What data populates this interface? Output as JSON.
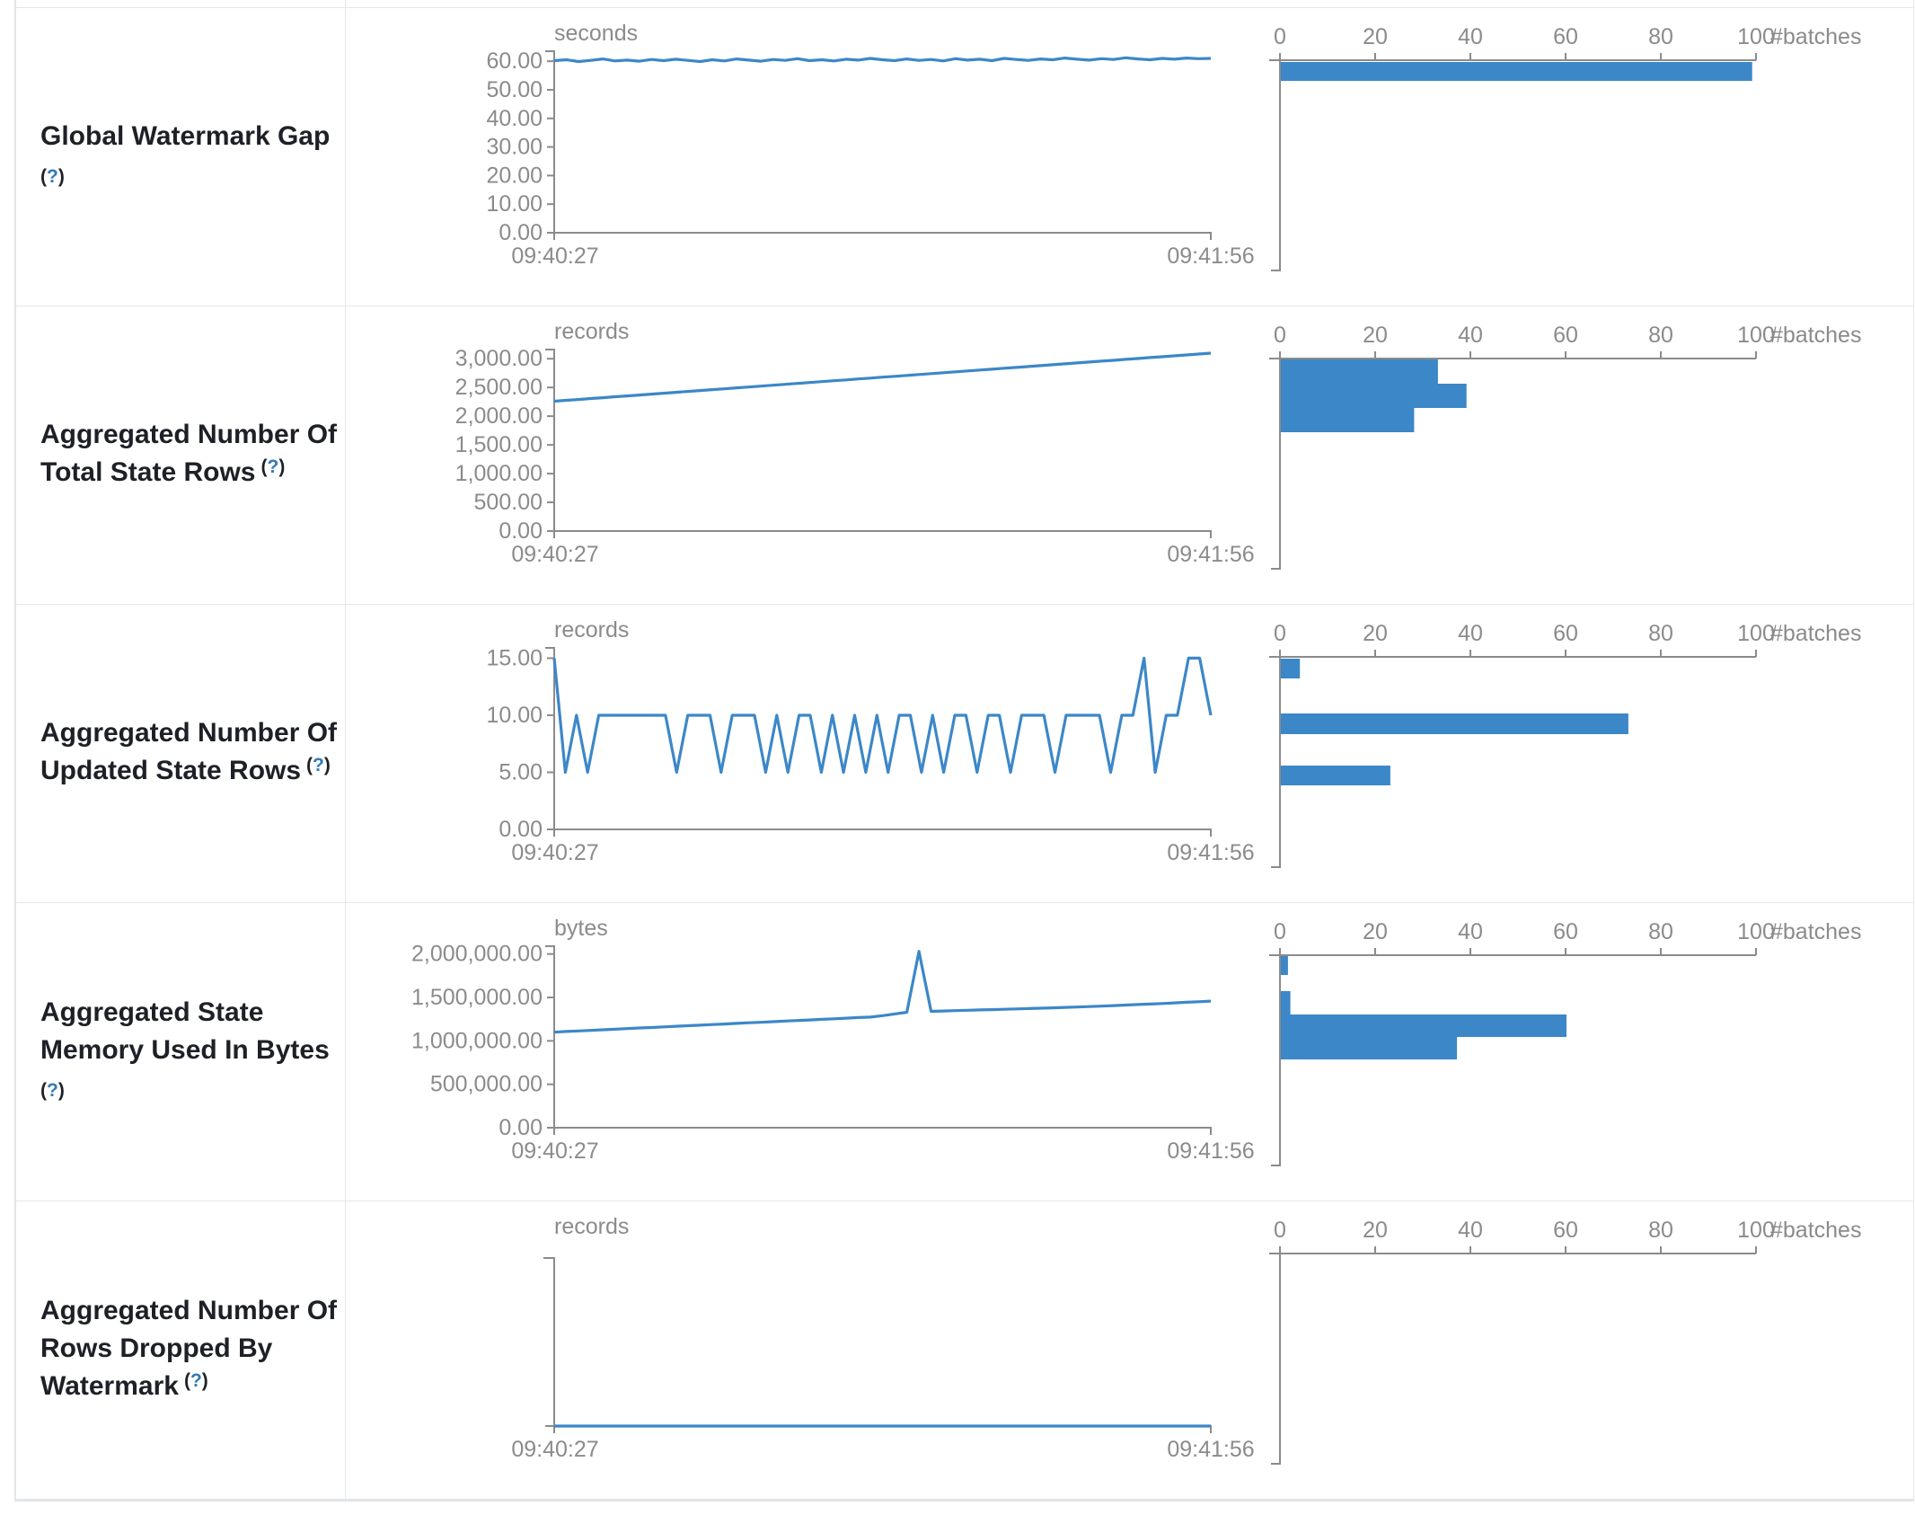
{
  "colors": {
    "accent": "#3c87c8",
    "axis": "#8b8b8b",
    "tick_text": "#8b8b8b",
    "label_text": "#1d2127",
    "help": "#337ab7",
    "border": "#e4e7ea"
  },
  "timeline_axis": {
    "start_label": "09:40:27",
    "end_label": "09:41:56"
  },
  "histogram_axis": {
    "tick_labels": [
      "0",
      "20",
      "40",
      "60",
      "80",
      "100"
    ],
    "tick_values": [
      0,
      20,
      40,
      60,
      80,
      100
    ],
    "unit_label": "#batches",
    "max": 100
  },
  "rows": [
    {
      "label_lines": [
        "Global Watermark Gap"
      ],
      "help": {
        "open": "(",
        "mark": "?",
        "close": ")",
        "inline": false
      },
      "chart_data": {
        "type": "line",
        "title": "Global Watermark Gap",
        "unit": "seconds",
        "xlabel_start": "09:40:27",
        "xlabel_end": "09:41:56",
        "ylim": [
          0,
          63.5
        ],
        "y_ticks": [
          {
            "v": 60,
            "label": "60.00"
          },
          {
            "v": 50,
            "label": "50.00"
          },
          {
            "v": 40,
            "label": "40.00"
          },
          {
            "v": 30,
            "label": "30.00"
          },
          {
            "v": 20,
            "label": "20.00"
          },
          {
            "v": 10,
            "label": "10.00"
          },
          {
            "v": 0,
            "label": "0.00"
          }
        ],
        "values": [
          60.2,
          60.5,
          59.9,
          60.3,
          60.8,
          60.1,
          60.4,
          60.0,
          60.6,
          60.2,
          60.7,
          60.3,
          59.9,
          60.5,
          60.1,
          60.8,
          60.4,
          60.0,
          60.6,
          60.3,
          60.9,
          60.2,
          60.5,
          60.1,
          60.7,
          60.4,
          61.0,
          60.5,
          60.2,
          60.8,
          60.3,
          60.6,
          60.1,
          60.9,
          60.4,
          60.7,
          60.2,
          61.0,
          60.6,
          60.3,
          60.8,
          60.5,
          61.1,
          60.7,
          60.4,
          60.9,
          60.6,
          61.2,
          60.8,
          60.5,
          61.0,
          60.7,
          61.1,
          60.9,
          61.0
        ]
      },
      "histogram": {
        "type": "bar",
        "unit": "#batches",
        "xlim": [
          0,
          100
        ],
        "bars": [
          {
            "batches": 99,
            "y": 60,
            "h": 21
          }
        ]
      }
    },
    {
      "label_lines": [
        "Aggregated Number Of",
        "Total State Rows"
      ],
      "help": {
        "open": "(",
        "mark": "?",
        "close": ")",
        "inline": true
      },
      "chart_data": {
        "type": "line",
        "title": "Aggregated Number Of Total State Rows",
        "unit": "records",
        "xlabel_start": "09:40:27",
        "xlabel_end": "09:41:56",
        "ylim": [
          0,
          3160
        ],
        "y_ticks": [
          {
            "v": 3000,
            "label": "3,000.00"
          },
          {
            "v": 2500,
            "label": "2,500.00"
          },
          {
            "v": 2000,
            "label": "2,000.00"
          },
          {
            "v": 1500,
            "label": "1,500.00"
          },
          {
            "v": 1000,
            "label": "1,000.00"
          },
          {
            "v": 500,
            "label": "500.00"
          },
          {
            "v": 0,
            "label": "0.00"
          }
        ],
        "values": [
          2260,
          2276,
          2291,
          2307,
          2322,
          2338,
          2353,
          2369,
          2384,
          2400,
          2415,
          2431,
          2446,
          2462,
          2477,
          2493,
          2508,
          2524,
          2539,
          2555,
          2570,
          2586,
          2601,
          2617,
          2632,
          2648,
          2663,
          2679,
          2694,
          2710,
          2725,
          2741,
          2756,
          2772,
          2787,
          2803,
          2818,
          2834,
          2849,
          2865,
          2880,
          2896,
          2911,
          2927,
          2942,
          2958,
          2973,
          2989,
          3004,
          3020,
          3035,
          3051,
          3066,
          3082,
          3097
        ]
      },
      "histogram": {
        "type": "bar",
        "unit": "#batches",
        "xlim": [
          0,
          100
        ],
        "bars": [
          {
            "batches": 33,
            "y": 59,
            "h": 27
          },
          {
            "batches": 39,
            "y": 86,
            "h": 27
          },
          {
            "batches": 28,
            "y": 113,
            "h": 27
          }
        ]
      }
    },
    {
      "label_lines": [
        "Aggregated Number Of",
        "Updated State Rows"
      ],
      "help": {
        "open": "(",
        "mark": "?",
        "close": ")",
        "inline": true
      },
      "chart_data": {
        "type": "line",
        "title": "Aggregated Number Of Updated State Rows",
        "unit": "records",
        "xlabel_start": "09:40:27",
        "xlabel_end": "09:41:56",
        "ylim": [
          0,
          15.9
        ],
        "y_ticks": [
          {
            "v": 15,
            "label": "15.00"
          },
          {
            "v": 10,
            "label": "10.00"
          },
          {
            "v": 5,
            "label": "5.00"
          },
          {
            "v": 0,
            "label": "0.00"
          }
        ],
        "values": [
          15,
          5,
          10,
          5,
          10,
          10,
          10,
          10,
          10,
          10,
          10,
          5,
          10,
          10,
          10,
          5,
          10,
          10,
          10,
          5,
          10,
          5,
          10,
          10,
          5,
          10,
          5,
          10,
          5,
          10,
          5,
          10,
          10,
          5,
          10,
          5,
          10,
          10,
          5,
          10,
          10,
          5,
          10,
          10,
          10,
          5,
          10,
          10,
          10,
          10,
          5,
          10,
          10,
          15,
          5,
          10,
          10,
          15,
          15,
          10
        ]
      },
      "histogram": {
        "type": "bar",
        "unit": "#batches",
        "xlim": [
          0,
          100
        ],
        "bars": [
          {
            "batches": 4,
            "y": 60,
            "h": 22
          },
          {
            "batches": 73,
            "y": 121,
            "h": 23
          },
          {
            "batches": 23,
            "y": 179,
            "h": 22
          }
        ]
      }
    },
    {
      "label_lines": [
        "Aggregated State",
        "Memory Used In Bytes"
      ],
      "help": {
        "open": "(",
        "mark": "?",
        "close": ")",
        "inline": false
      },
      "chart_data": {
        "type": "line",
        "title": "Aggregated State Memory Used In Bytes",
        "unit": "bytes",
        "xlabel_start": "09:40:27",
        "xlabel_end": "09:41:56",
        "ylim": [
          0,
          2090000
        ],
        "y_ticks": [
          {
            "v": 2000000,
            "label": "2,000,000.00"
          },
          {
            "v": 1500000,
            "label": "1,500,000.00"
          },
          {
            "v": 1000000,
            "label": "1,000,000.00"
          },
          {
            "v": 500000,
            "label": "500,000.00"
          },
          {
            "v": 0,
            "label": "0.00"
          }
        ],
        "values": [
          1100000,
          1108000,
          1114000,
          1121000,
          1128000,
          1134000,
          1141000,
          1148000,
          1154000,
          1161000,
          1168000,
          1174000,
          1181000,
          1188000,
          1194000,
          1201000,
          1208000,
          1214000,
          1221000,
          1228000,
          1234000,
          1241000,
          1248000,
          1254000,
          1261000,
          1268000,
          1274000,
          1290000,
          1310000,
          1330000,
          2030000,
          1340000,
          1344000,
          1348000,
          1352000,
          1356000,
          1360000,
          1364000,
          1368000,
          1372000,
          1376000,
          1380000,
          1385000,
          1390000,
          1395000,
          1400000,
          1406000,
          1412000,
          1418000,
          1424000,
          1430000,
          1437000,
          1444000,
          1451000,
          1458000
        ]
      },
      "histogram": {
        "type": "bar",
        "unit": "#batches",
        "xlim": [
          0,
          100
        ],
        "bars": [
          {
            "batches": 1.5,
            "y": 59,
            "h": 21
          },
          {
            "batches": 2,
            "y": 98,
            "h": 26
          },
          {
            "batches": 60,
            "y": 124,
            "h": 25
          },
          {
            "batches": 37,
            "y": 149,
            "h": 25
          }
        ]
      }
    },
    {
      "label_lines": [
        "Aggregated Number Of",
        "Rows Dropped By",
        "Watermark"
      ],
      "help": {
        "open": "(",
        "mark": "?",
        "close": ")",
        "inline": true
      },
      "chart_data": {
        "type": "line",
        "title": "Aggregated Number Of Rows Dropped By Watermark",
        "unit": "records",
        "xlabel_start": "09:40:27",
        "xlabel_end": "09:41:56",
        "ylim": [
          0,
          1
        ],
        "y_ticks": [],
        "values": [
          0,
          0,
          0,
          0,
          0,
          0,
          0,
          0,
          0,
          0,
          0,
          0,
          0,
          0,
          0,
          0,
          0,
          0,
          0,
          0,
          0,
          0,
          0,
          0,
          0,
          0,
          0,
          0,
          0,
          0,
          0,
          0,
          0,
          0,
          0,
          0,
          0,
          0,
          0,
          0,
          0,
          0,
          0,
          0,
          0,
          0,
          0,
          0,
          0,
          0,
          0,
          0,
          0,
          0,
          0
        ]
      },
      "histogram": {
        "type": "bar",
        "unit": "#batches",
        "xlim": [
          0,
          100
        ],
        "bars": []
      }
    }
  ]
}
